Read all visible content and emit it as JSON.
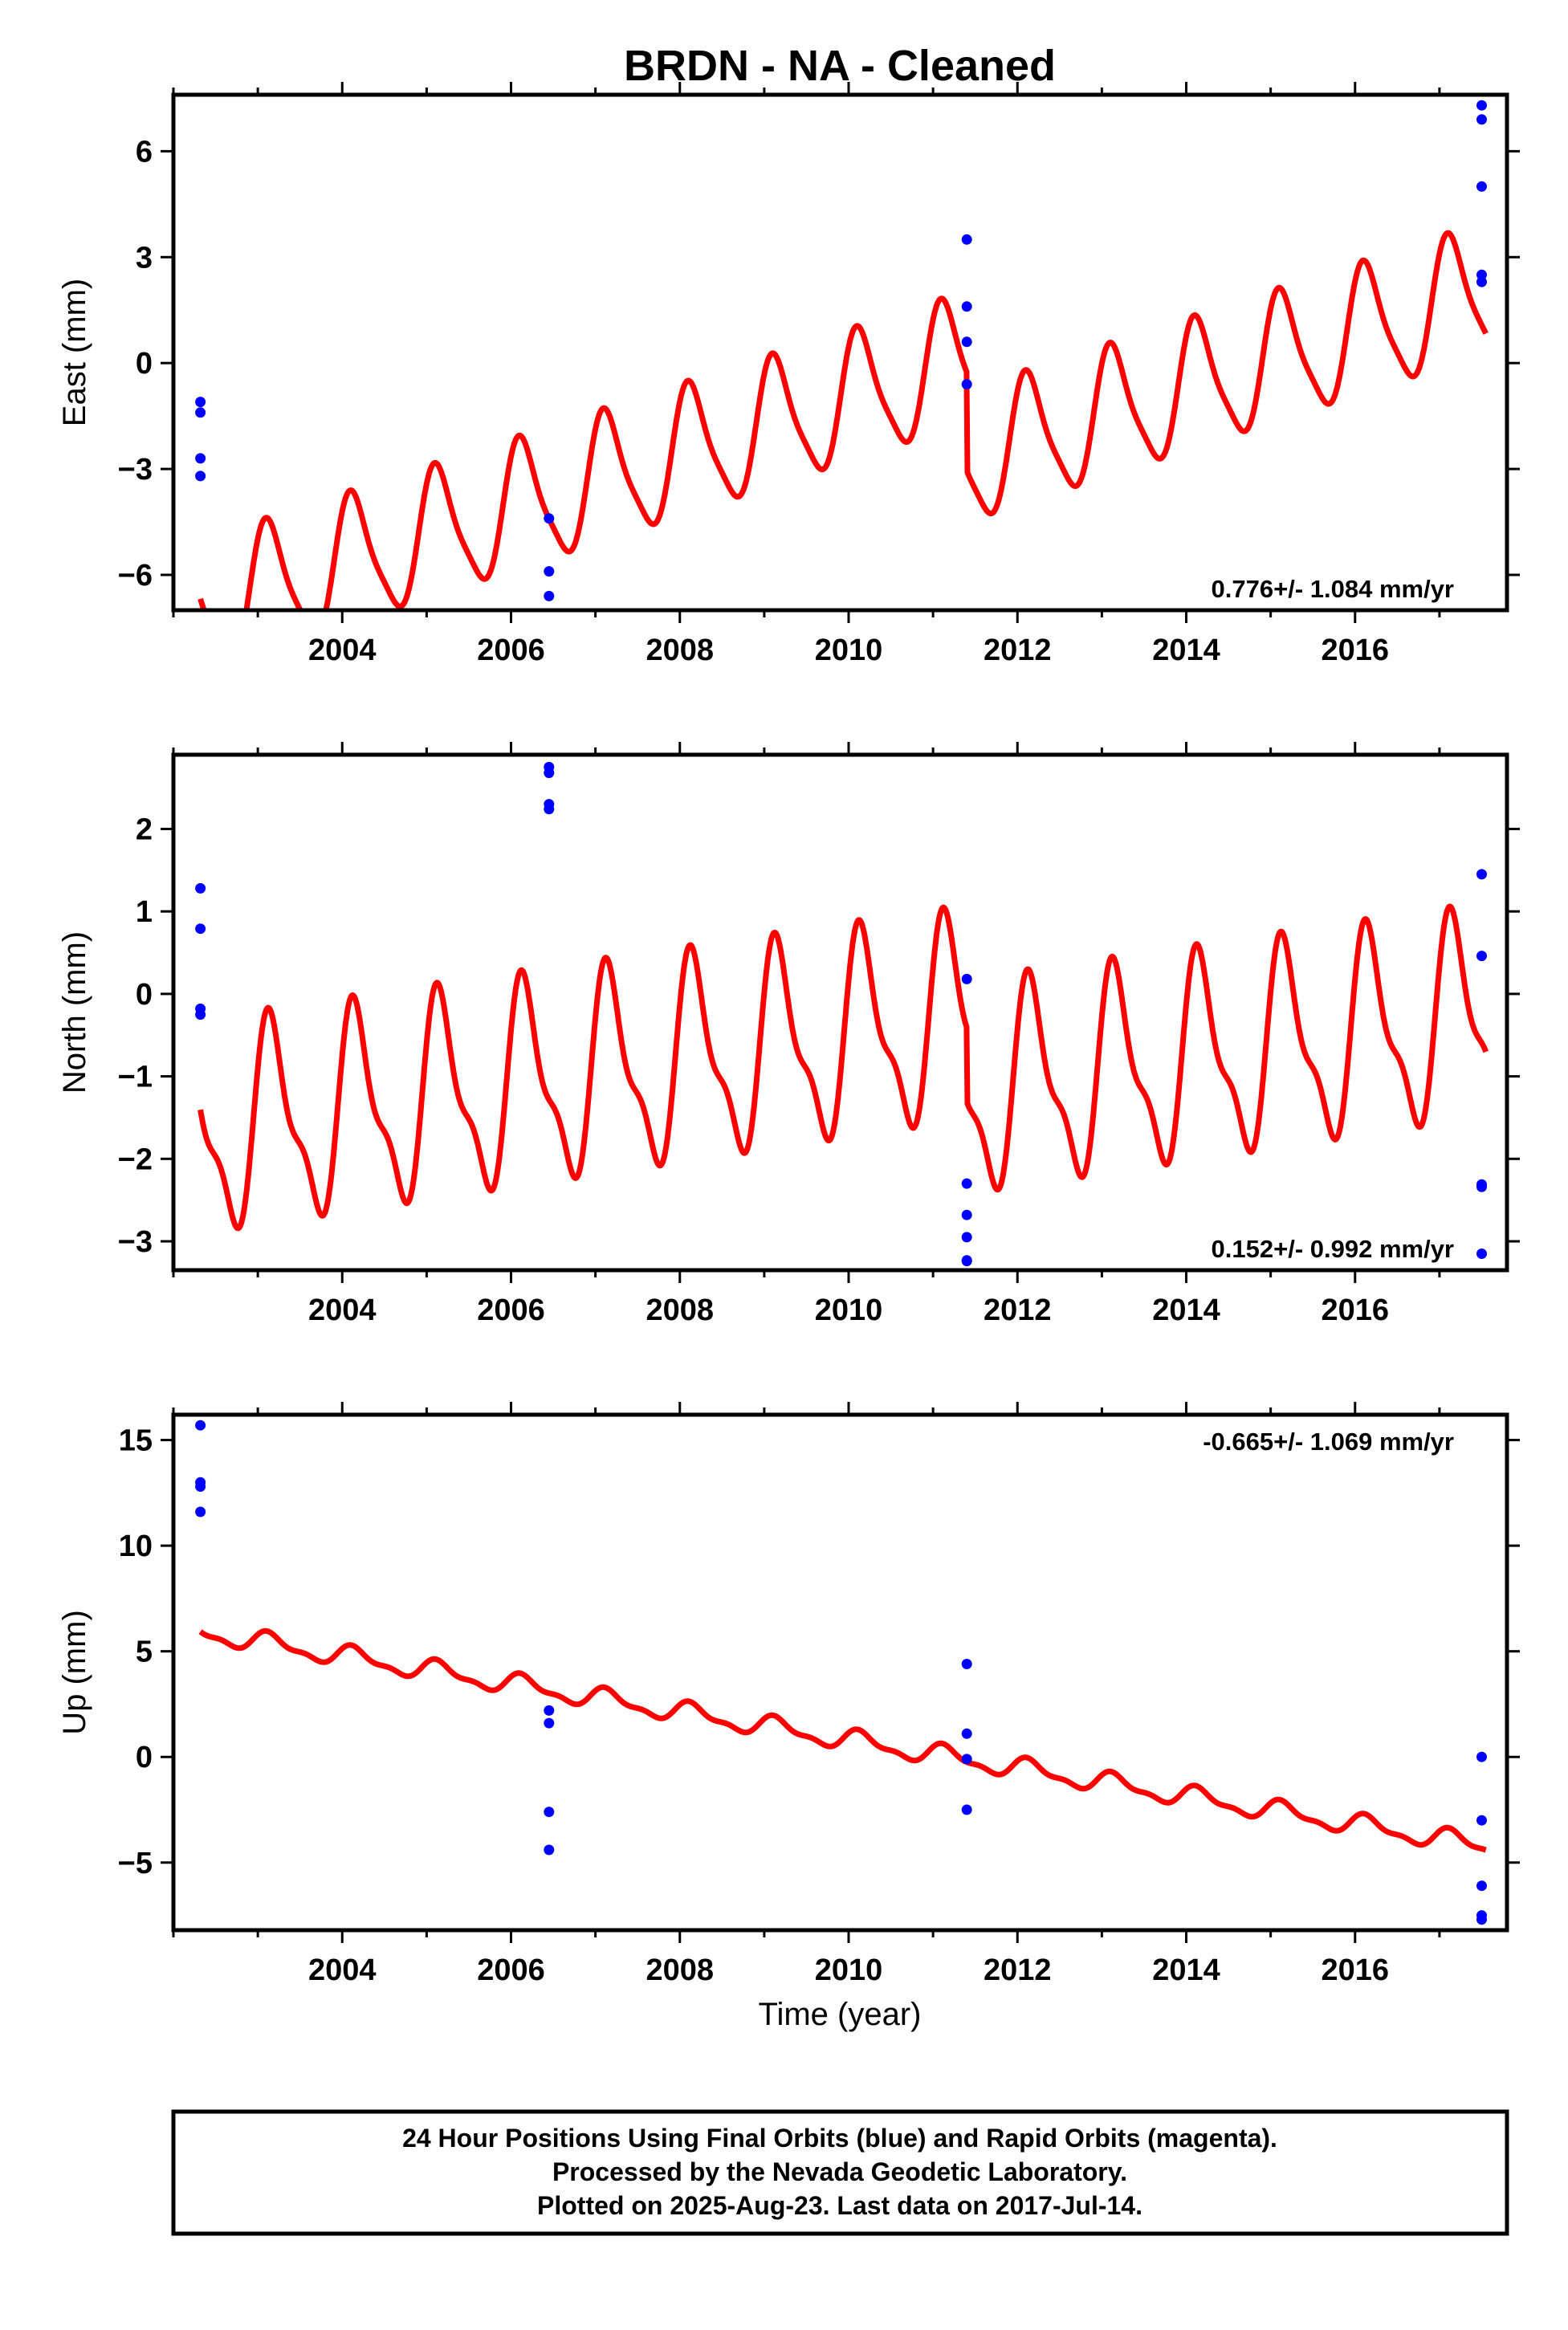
{
  "title": "BRDN  - NA - Cleaned",
  "xlabel": "Time (year)",
  "footer": {
    "line1": "24 Hour Positions Using Final Orbits (blue) and Rapid Orbits (magenta).",
    "line2": "Processed by the Nevada Geodetic Laboratory.",
    "line3": "Plotted on 2025-Aug-23. Last data on 2017-Jul-14."
  },
  "colors": {
    "final_orbits": "#0000ff",
    "model": "#ff0000",
    "frame": "#000000"
  },
  "chart_data": [
    {
      "type": "scatter",
      "component": "East",
      "ylabel": "East (mm)",
      "rate_label": "0.776+/- 1.084 mm/yr",
      "rate_label_placement": "bottom-right",
      "xlim": [
        2002.0,
        2017.8
      ],
      "ylim": [
        -7.0,
        7.6
      ],
      "xticks": [
        2004,
        2006,
        2008,
        2010,
        2012,
        2014,
        2016
      ],
      "yticks": [
        6,
        3,
        0,
        -3,
        -6
      ],
      "ytick_labels": [
        "6",
        "3",
        "0",
        "−3",
        "−6"
      ],
      "grid": false,
      "points": {
        "name": "Final Orbits",
        "x": [
          2002.32,
          2002.32,
          2002.32,
          2002.32,
          2006.45,
          2006.45,
          2006.45,
          2011.4,
          2011.4,
          2011.4,
          2011.4,
          2017.5,
          2017.5,
          2017.5,
          2017.5,
          2017.5
        ],
        "y": [
          -1.1,
          -1.4,
          -2.7,
          -3.2,
          -4.4,
          -5.9,
          -6.6,
          3.5,
          1.6,
          0.6,
          -0.6,
          7.3,
          6.9,
          5.0,
          2.5,
          2.3
        ]
      },
      "model": {
        "name": "Model fit",
        "start": 2002.32,
        "end": 2017.55,
        "offset": -7.0,
        "rate": 0.776,
        "sin1": 1.3,
        "cos1": 1.2,
        "sin2": 0.2,
        "cos2": 0.3,
        "steps": [
          {
            "year": 2011.4,
            "size": -2.8
          }
        ]
      }
    },
    {
      "type": "scatter",
      "component": "North",
      "ylabel": "North (mm)",
      "rate_label": "0.152+/- 0.992 mm/yr",
      "rate_label_placement": "bottom-right",
      "xlim": [
        2002.0,
        2017.8
      ],
      "ylim": [
        -3.35,
        2.9
      ],
      "xticks": [
        2004,
        2006,
        2008,
        2010,
        2012,
        2014,
        2016
      ],
      "yticks": [
        2,
        1,
        0,
        -1,
        -2,
        -3
      ],
      "ytick_labels": [
        "2",
        "1",
        "0",
        "−1",
        "−2",
        "−3"
      ],
      "grid": false,
      "points": {
        "name": "Final Orbits",
        "x": [
          2002.32,
          2002.32,
          2002.32,
          2002.32,
          2006.45,
          2006.45,
          2006.45,
          2006.45,
          2011.4,
          2011.4,
          2011.4,
          2011.4,
          2011.4,
          2011.4,
          2017.5,
          2017.5,
          2017.5,
          2017.5,
          2017.5
        ],
        "y": [
          1.28,
          0.79,
          -0.18,
          -0.25,
          2.75,
          2.68,
          2.3,
          2.24,
          0.18,
          -2.3,
          -2.68,
          -2.95,
          -3.23,
          -3.24,
          1.45,
          0.46,
          -2.31,
          -2.34,
          -3.15
        ],
        "name_note": ""
      },
      "model": {
        "name": "Model fit",
        "start": 2002.32,
        "end": 2017.55,
        "offset": -1.7,
        "rate": 0.152,
        "sin1": 1.0,
        "cos1": 0.5,
        "sin2": 0.35,
        "cos2": 0.2,
        "steps": [
          {
            "year": 2011.4,
            "size": -0.9
          }
        ]
      }
    },
    {
      "type": "scatter",
      "component": "Up",
      "ylabel": "Up (mm)",
      "rate_label": "-0.665+/- 1.069 mm/yr",
      "rate_label_placement": "top-right",
      "xlim": [
        2002.0,
        2017.8
      ],
      "ylim": [
        -8.2,
        16.2
      ],
      "xticks": [
        2004,
        2006,
        2008,
        2010,
        2012,
        2014,
        2016
      ],
      "yticks": [
        15,
        10,
        5,
        0,
        -5
      ],
      "ytick_labels": [
        "15",
        "10",
        "5",
        "0",
        "−5"
      ],
      "grid": false,
      "points": {
        "name": "Final Orbits",
        "x": [
          2002.32,
          2002.32,
          2002.32,
          2002.32,
          2006.45,
          2006.45,
          2006.45,
          2006.45,
          2011.4,
          2011.4,
          2011.4,
          2011.4,
          2017.5,
          2017.5,
          2017.5,
          2017.5,
          2017.5
        ],
        "y": [
          15.7,
          13.0,
          12.8,
          11.6,
          2.2,
          1.6,
          -2.6,
          -4.4,
          4.4,
          1.1,
          -0.1,
          -2.5,
          0.0,
          -3.0,
          -6.1,
          -7.5,
          -7.7
        ]
      },
      "model": {
        "name": "Model fit",
        "start": 2002.32,
        "end": 2017.55,
        "offset": 5.9,
        "rate": -0.665,
        "sin1": 0.35,
        "cos1": 0.25,
        "sin2": 0.15,
        "cos2": 0.1,
        "steps": []
      }
    }
  ]
}
